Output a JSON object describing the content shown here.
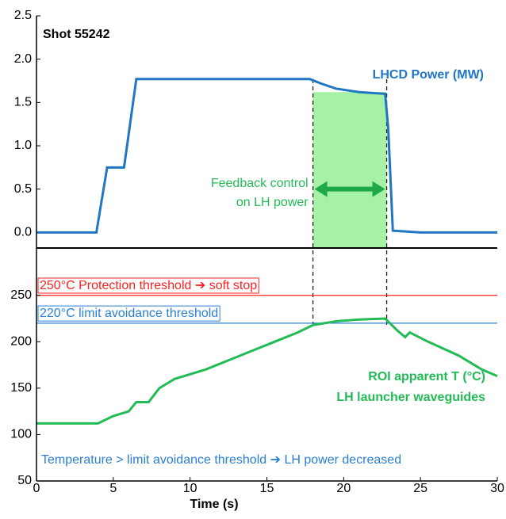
{
  "chart_data": [
    {
      "type": "line",
      "title": "Shot 55242",
      "xlim": [
        0,
        30
      ],
      "ylim": [
        -0.18,
        2.5
      ],
      "yticks": [
        {
          "value": 0,
          "label": "0.0"
        },
        0.5,
        {
          "value": 1,
          "label": "1.0"
        },
        1.5,
        {
          "value": 2,
          "label": "2.0"
        },
        2.5
      ],
      "series": [
        {
          "name": "LHCD Power (MW)",
          "color": "#1f77c4",
          "x": [
            0,
            3.9,
            4.6,
            5.7,
            6.5,
            10,
            15,
            17.8,
            18.5,
            19.5,
            21,
            22.7,
            22.9,
            23.2,
            25,
            30
          ],
          "values": [
            0,
            0,
            0.75,
            0.75,
            1.77,
            1.77,
            1.77,
            1.77,
            1.72,
            1.66,
            1.62,
            1.6,
            1.2,
            0.02,
            0,
            0
          ]
        }
      ],
      "region": {
        "x": [
          18,
          22.8
        ],
        "top": 1.62,
        "color": "#90ee90",
        "label": [
          "Feedback control",
          "on LH power"
        ]
      }
    },
    {
      "type": "line",
      "xlim": [
        0,
        30
      ],
      "ylim": [
        50,
        301
      ],
      "xticks": [
        0,
        5,
        10,
        15,
        20,
        25,
        30
      ],
      "yticks": [
        50,
        100,
        150,
        200,
        250
      ],
      "xlabel": "Time (s)",
      "series": [
        {
          "name": [
            "ROI apparent T (°C)",
            "LH launcher waveguides"
          ],
          "color": "#22bb55",
          "x": [
            0,
            4,
            5,
            6,
            6.5,
            7.3,
            8,
            9,
            11,
            12.5,
            14,
            15.5,
            17,
            18,
            19.5,
            21,
            22.7,
            23.5,
            24,
            24.3,
            25.5,
            27.5,
            29,
            30
          ],
          "values": [
            112,
            112,
            120,
            125,
            135,
            135,
            150,
            160,
            170,
            180,
            190,
            200,
            210,
            218,
            222,
            224,
            225,
            212,
            205,
            210,
            200,
            185,
            170,
            163
          ]
        }
      ],
      "thresholds": [
        {
          "value": 250,
          "label": "250°C Protection threshold ➔ soft stop",
          "color": "#ff2020"
        },
        {
          "value": 220,
          "label": "220°C limit avoidance threshold",
          "color": "#2a7fd4"
        }
      ],
      "note": "Temperature > limit avoidance threshold ➔ LH power decreased"
    }
  ]
}
